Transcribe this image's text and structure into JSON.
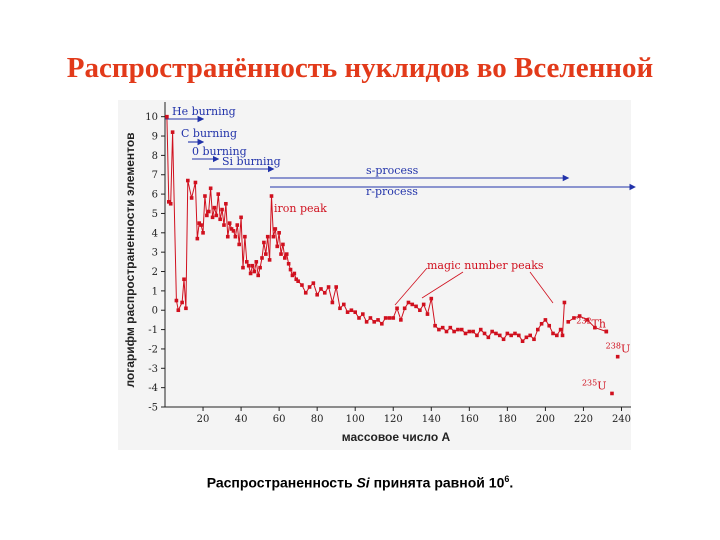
{
  "slide": {
    "title": "Распространённость нуклидов во Вселенной",
    "caption_prefix": "Распространенность ",
    "caption_element": "Si",
    "caption_middle": " принята равной 10",
    "caption_sup": "6",
    "caption_suffix": "."
  },
  "chart_data": {
    "type": "line",
    "xlabel": "массовое число А",
    "ylabel": "логарифм распространенности элементов",
    "xlim": [
      0,
      245
    ],
    "ylim": [
      -5,
      10.5
    ],
    "x_ticks": [
      20,
      40,
      60,
      80,
      100,
      120,
      140,
      160,
      180,
      200,
      220,
      240
    ],
    "y_ticks": [
      10,
      9,
      8,
      7,
      6,
      5,
      4,
      3,
      2,
      1,
      0,
      -1,
      -2,
      -3,
      -4,
      -5
    ],
    "y_tick_labels": [
      "10",
      "9",
      "8",
      "7",
      "6",
      "5",
      "4",
      "3",
      "2",
      "1",
      "0",
      "-1",
      "-2",
      "-3",
      "-4",
      "-5"
    ],
    "grid": false,
    "series_color": "#d0101e",
    "process_color": "#2233aa",
    "series": [
      {
        "x": [
          1,
          2,
          3,
          4,
          6,
          7,
          9,
          10,
          11,
          12,
          14,
          16,
          17,
          18,
          19,
          20,
          21,
          22,
          23,
          24,
          25,
          26,
          27,
          28,
          29,
          30,
          31,
          32,
          33,
          34,
          35,
          36,
          37,
          38,
          39,
          40,
          41,
          42,
          43,
          44,
          45,
          46,
          47,
          48,
          49,
          50,
          51,
          52,
          53,
          54,
          55,
          56,
          57,
          58,
          59,
          60,
          61,
          62,
          63,
          64,
          65,
          66,
          67,
          68,
          69,
          70,
          72,
          74,
          76,
          78,
          80,
          82,
          84,
          86,
          88,
          90,
          92,
          94,
          96,
          98,
          100,
          102,
          104,
          106,
          108,
          110,
          112,
          114,
          116,
          118,
          120,
          122,
          124,
          126,
          128,
          130,
          132,
          134,
          136,
          138,
          140,
          142,
          144,
          146,
          148,
          150,
          152,
          154,
          156,
          158,
          160,
          162,
          164,
          166,
          168,
          170,
          172,
          174,
          176,
          178,
          180,
          182,
          184,
          186,
          188,
          190,
          192,
          194,
          196,
          198,
          200,
          202,
          204,
          206,
          208,
          209,
          210
        ],
        "y": [
          10.0,
          5.6,
          5.5,
          9.2,
          0.5,
          0.0,
          0.4,
          1.6,
          0.1,
          6.7,
          5.8,
          6.6,
          3.7,
          4.5,
          4.4,
          4.0,
          5.9,
          4.9,
          5.1,
          6.3,
          4.8,
          5.3,
          4.9,
          6.0,
          4.7,
          5.2,
          4.4,
          5.5,
          3.8,
          4.5,
          4.2,
          4.1,
          3.8,
          4.4,
          3.4,
          4.8,
          2.2,
          3.8,
          2.5,
          2.3,
          1.9,
          2.3,
          2.0,
          2.5,
          1.8,
          2.2,
          2.7,
          3.5,
          2.9,
          3.8,
          2.6,
          5.9,
          3.8,
          4.2,
          3.3,
          4.0,
          2.9,
          3.4,
          2.7,
          2.9,
          2.4,
          2.1,
          1.8,
          1.9,
          1.6,
          1.5,
          1.3,
          0.9,
          1.2,
          1.4,
          0.8,
          1.1,
          0.9,
          1.2,
          0.4,
          1.2,
          0.1,
          0.3,
          -0.1,
          0.0,
          -0.1,
          -0.4,
          -0.2,
          -0.6,
          -0.4,
          -0.6,
          -0.5,
          -0.7,
          -0.4,
          -0.4,
          -0.4,
          0.1,
          -0.5,
          0.1,
          0.4,
          0.3,
          0.2,
          0.0,
          0.3,
          -0.2,
          0.6,
          -0.8,
          -1.0,
          -0.9,
          -1.1,
          -0.9,
          -1.1,
          -1.0,
          -1.0,
          -1.2,
          -1.1,
          -1.1,
          -1.3,
          -1.0,
          -1.2,
          -1.4,
          -1.1,
          -1.2,
          -1.3,
          -1.5,
          -1.2,
          -1.3,
          -1.2,
          -1.3,
          -1.6,
          -1.4,
          -1.3,
          -1.5,
          -1.0,
          -0.7,
          -0.5,
          -0.8,
          -1.2,
          -1.3,
          -1.0,
          -1.3,
          0.4
        ]
      },
      {
        "x": [
          212,
          215,
          218,
          222,
          226,
          232
        ],
        "y": [
          -0.6,
          -0.4,
          -0.3,
          -0.5,
          -0.9,
          -1.1
        ]
      }
    ],
    "isolated_points": [
      {
        "label": "232",
        "suffix": "Th",
        "x": 232,
        "y": -1.1
      },
      {
        "label": "238",
        "suffix": "U",
        "x": 238,
        "y": -2.4
      },
      {
        "label": "235",
        "suffix": "U",
        "x": 235,
        "y": -4.3
      }
    ],
    "processes": [
      {
        "label": "He burning",
        "x_end": 20
      },
      {
        "label": "C burning",
        "x_end": 20
      },
      {
        "label": "0 burning",
        "x_end": 28
      },
      {
        "label": "Si burning",
        "x_end": 57
      },
      {
        "label": "s-process",
        "x_end": 212
      },
      {
        "label": "r-process",
        "x_end": 247
      }
    ],
    "annotations": {
      "iron_peak": "iron peak",
      "magic": "magic number peaks"
    }
  }
}
